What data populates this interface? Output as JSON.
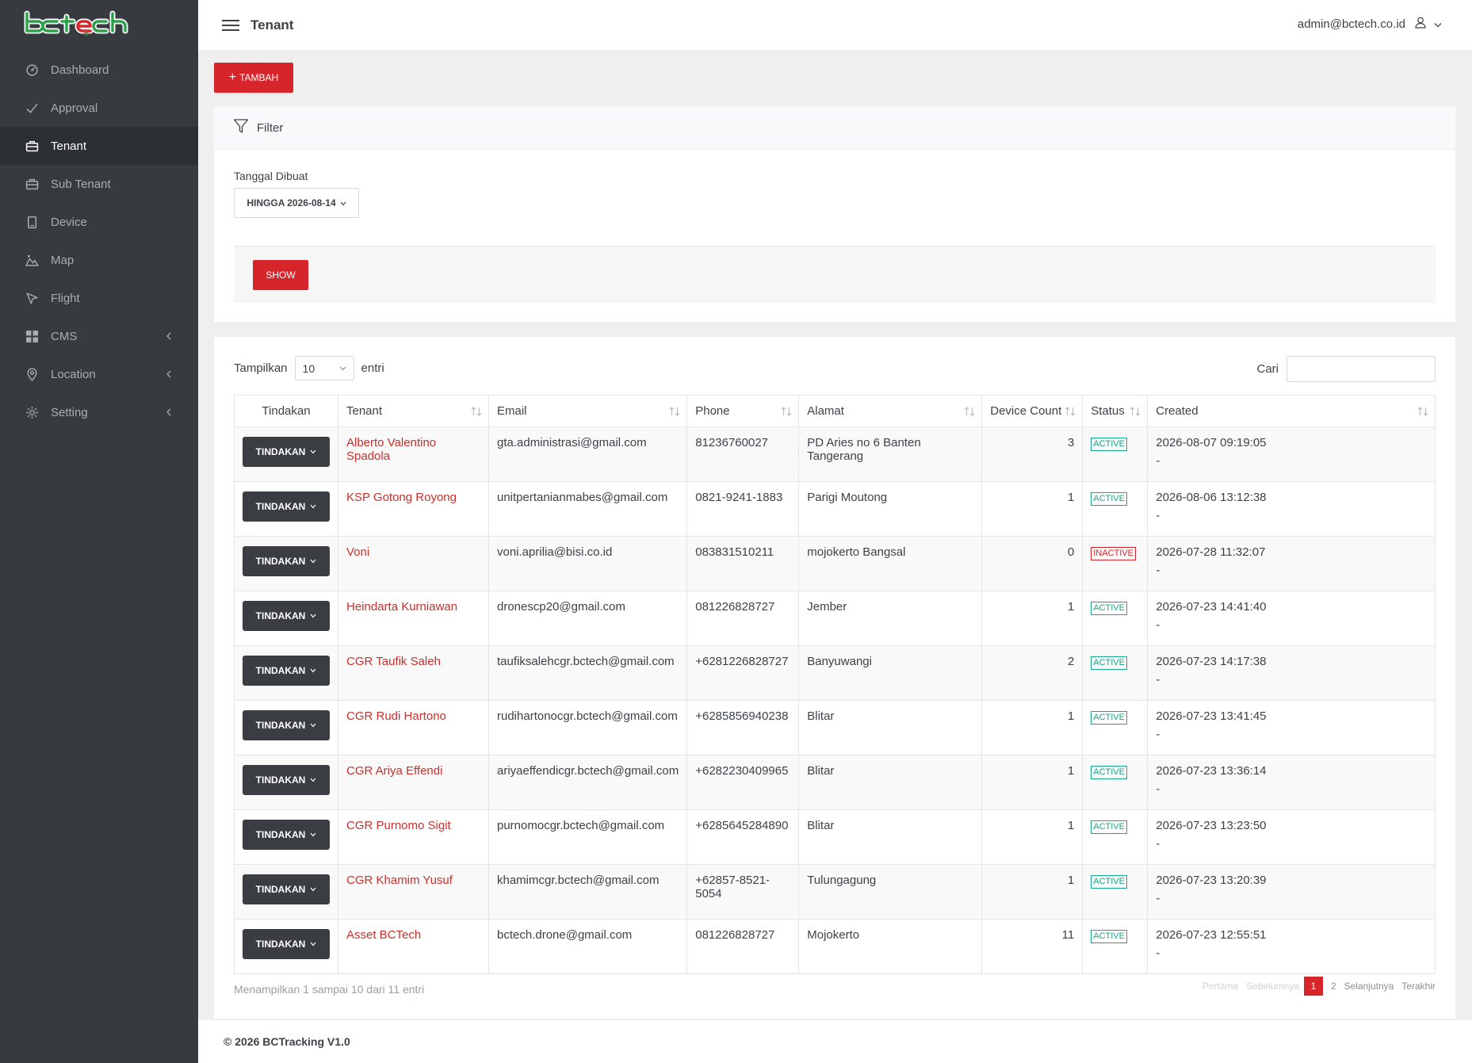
{
  "app": {
    "logo_text": "bctech",
    "page_title": "Tenant",
    "user_email": "admin@bctech.co.id"
  },
  "sidebar": {
    "items": [
      {
        "label": "Dashboard",
        "icon": "dashboard-icon"
      },
      {
        "label": "Approval",
        "icon": "check-icon"
      },
      {
        "label": "Tenant",
        "icon": "briefcase-icon",
        "active": true
      },
      {
        "label": "Sub Tenant",
        "icon": "briefcase-icon"
      },
      {
        "label": "Device",
        "icon": "device-icon"
      },
      {
        "label": "Map",
        "icon": "map-icon"
      },
      {
        "label": "Flight",
        "icon": "flight-icon"
      },
      {
        "label": "CMS",
        "icon": "grid-icon",
        "submenu": true
      },
      {
        "label": "Location",
        "icon": "pin-icon",
        "submenu": true
      },
      {
        "label": "Setting",
        "icon": "gear-icon",
        "submenu": true
      }
    ]
  },
  "toolbar": {
    "add_label": "TAMBAH"
  },
  "filter": {
    "title": "Filter",
    "date_label": "Tanggal Dibuat",
    "date_value": "HINGGA 2026-08-14",
    "show_label": "SHOW"
  },
  "table": {
    "length_label_before": "Tampilkan",
    "length_value": "10",
    "length_label_after": "entri",
    "search_label": "Cari",
    "search_value": "",
    "columns": [
      "Tindakan",
      "Tenant",
      "Email",
      "Phone",
      "Alamat",
      "Device Count",
      "Status",
      "Created"
    ],
    "action_label": "TINDAKAN",
    "rows": [
      {
        "tenant": "Alberto Valentino Spadola",
        "email": "gta.administrasi@gmail.com",
        "phone": "81236760027",
        "alamat": "PD Aries no 6 Banten Tangerang",
        "device_count": "3",
        "status": "ACTIVE",
        "created": "2026-08-07 09:19:05",
        "created_by": "-"
      },
      {
        "tenant": "KSP Gotong Royong",
        "email": "unitpertanianmabes@gmail.com",
        "phone": "0821-9241-1883",
        "alamat": "Parigi Moutong",
        "device_count": "1",
        "status": "ACTIVE",
        "created": "2026-08-06 13:12:38",
        "created_by": "-"
      },
      {
        "tenant": "Voni",
        "email": "voni.aprilia@bisi.co.id",
        "phone": "083831510211",
        "alamat": "mojokerto Bangsal",
        "device_count": "0",
        "status": "INACTIVE",
        "created": "2026-07-28 11:32:07",
        "created_by": "-"
      },
      {
        "tenant": "Heindarta Kurniawan",
        "email": "dronescp20@gmail.com",
        "phone": "081226828727",
        "alamat": "Jember",
        "device_count": "1",
        "status": "ACTIVE",
        "created": "2026-07-23 14:41:40",
        "created_by": "-"
      },
      {
        "tenant": "CGR Taufik Saleh",
        "email": "taufiksalehcgr.bctech@gmail.com",
        "phone": "+6281226828727",
        "alamat": "Banyuwangi",
        "device_count": "2",
        "status": "ACTIVE",
        "created": "2026-07-23 14:17:38",
        "created_by": "-"
      },
      {
        "tenant": "CGR Rudi Hartono",
        "email": "rudihartonocgr.bctech@gmail.com",
        "phone": "+6285856940238",
        "alamat": "Blitar",
        "device_count": "1",
        "status": "ACTIVE",
        "created": "2026-07-23 13:41:45",
        "created_by": "-"
      },
      {
        "tenant": "CGR Ariya Effendi",
        "email": "ariyaeffendicgr.bctech@gmail.com",
        "phone": "+6282230409965",
        "alamat": "Blitar",
        "device_count": "1",
        "status": "ACTIVE",
        "created": "2026-07-23 13:36:14",
        "created_by": "-"
      },
      {
        "tenant": "CGR Purnomo Sigit",
        "email": "purnomocgr.bctech@gmail.com",
        "phone": "+6285645284890",
        "alamat": "Blitar",
        "device_count": "1",
        "status": "ACTIVE",
        "created": "2026-07-23 13:23:50",
        "created_by": "-"
      },
      {
        "tenant": "CGR Khamim Yusuf",
        "email": "khamimcgr.bctech@gmail.com",
        "phone": "+62857-8521-5054",
        "alamat": "Tulungagung",
        "device_count": "1",
        "status": "ACTIVE",
        "created": "2026-07-23 13:20:39",
        "created_by": "-"
      },
      {
        "tenant": "Asset BCTech",
        "email": "bctech.drone@gmail.com",
        "phone": "081226828727",
        "alamat": "Mojokerto",
        "device_count": "11",
        "status": "ACTIVE",
        "created": "2026-07-23 12:55:51",
        "created_by": "-"
      }
    ],
    "info": "Menampilkan 1 sampai 10 dari 11 entri",
    "pagination": {
      "first": "Pertama",
      "previous": "Sebelumnya",
      "pages": [
        "1",
        "2"
      ],
      "current": "1",
      "next": "Selanjutnya",
      "last": "Terakhir"
    }
  },
  "footer": {
    "text": "© 2026 BCTracking V1.0"
  },
  "colors": {
    "brand_red": "#d7262b",
    "sidebar_bg": "#373a3f",
    "active_green": "#17a689",
    "logo_green": "#2aa24a"
  }
}
